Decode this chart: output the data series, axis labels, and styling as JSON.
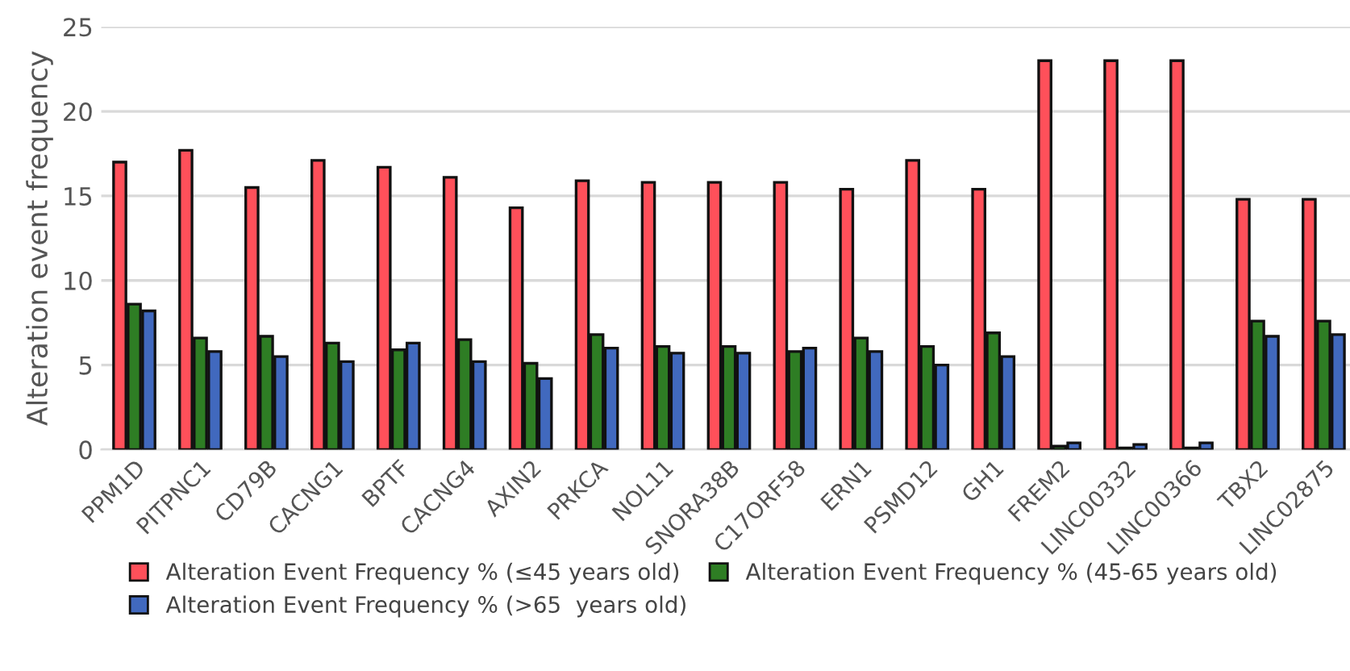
{
  "chart_data": {
    "type": "bar",
    "ylabel": "Alteration event frequency",
    "categories": [
      "PPM1D",
      "PITPNC1",
      "CD79B",
      "CACNG1",
      "BPTF",
      "CACNG4",
      "AXIN2",
      "PRKCA",
      "NOL11",
      "SNORA38B",
      "C17ORF58",
      "ERN1",
      "PSMD12",
      "GH1",
      "FREM2",
      "LINC00332",
      "LINC00366",
      "TBX2",
      "LINC02875"
    ],
    "series": [
      {
        "name": "Alteration Event Frequency % (≤45 years old)",
        "color": "#ff505a",
        "values": [
          17.0,
          17.7,
          15.5,
          17.1,
          16.7,
          16.1,
          14.3,
          15.9,
          15.8,
          15.8,
          15.8,
          15.4,
          17.1,
          15.4,
          23.0,
          23.0,
          23.0,
          14.8,
          14.8
        ]
      },
      {
        "name": "Alteration Event Frequency % (45-65 years old)",
        "color": "#2e7d24",
        "values": [
          8.6,
          6.6,
          6.7,
          6.3,
          5.9,
          6.5,
          5.1,
          6.8,
          6.1,
          6.1,
          5.8,
          6.6,
          6.1,
          6.9,
          0.2,
          0.1,
          0.1,
          7.6,
          7.6
        ]
      },
      {
        "name": "Alteration Event Frequency % (>65  years old)",
        "color": "#4169be",
        "values": [
          8.2,
          5.8,
          5.5,
          5.2,
          6.3,
          5.2,
          4.2,
          6.0,
          5.7,
          5.7,
          6.0,
          5.8,
          5.0,
          5.5,
          0.4,
          0.3,
          0.4,
          6.7,
          6.8
        ]
      }
    ],
    "ylim": [
      0,
      25
    ],
    "yticks": [
      0,
      5,
      10,
      15,
      20,
      25
    ],
    "grid": "y",
    "legend": "bottom"
  }
}
